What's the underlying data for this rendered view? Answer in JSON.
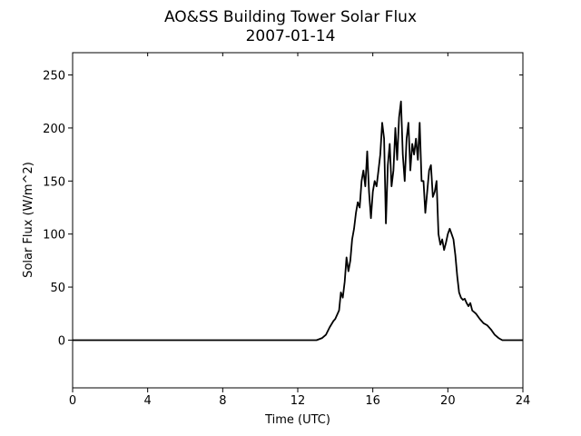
{
  "chart_data": {
    "type": "line",
    "title": "AO&SS Building Tower Solar Flux",
    "subtitle": "2007-01-14",
    "xlabel": "Time (UTC)",
    "ylabel": "Solar Flux (W/m^2)",
    "xlim": [
      0,
      24
    ],
    "ylim": [
      -45,
      271
    ],
    "xticks": [
      0,
      4,
      8,
      12,
      16,
      20,
      24
    ],
    "yticks": [
      0,
      50,
      100,
      150,
      200,
      250
    ],
    "grid": false,
    "line_color": "#000000",
    "series": [
      {
        "x": [
          0,
          12.5,
          13.0,
          13.3,
          13.5,
          13.7,
          13.9,
          14.0,
          14.2,
          14.3,
          14.4,
          14.5,
          14.6,
          14.7,
          14.8,
          14.9,
          15.0,
          15.1,
          15.2,
          15.3,
          15.4,
          15.5,
          15.6,
          15.7,
          15.8,
          15.9,
          16.0,
          16.1,
          16.2,
          16.3,
          16.4,
          16.5,
          16.6,
          16.7,
          16.8,
          16.9,
          17.0,
          17.1,
          17.2,
          17.3,
          17.4,
          17.5,
          17.6,
          17.7,
          17.8,
          17.9,
          18.0,
          18.1,
          18.2,
          18.3,
          18.4,
          18.5,
          18.6,
          18.7,
          18.8,
          18.9,
          19.0,
          19.1,
          19.2,
          19.3,
          19.4,
          19.5,
          19.6,
          19.7,
          19.8,
          19.9,
          20.0,
          20.1,
          20.2,
          20.3,
          20.4,
          20.5,
          20.6,
          20.7,
          20.8,
          20.9,
          21.0,
          21.1,
          21.2,
          21.3,
          21.5,
          21.7,
          21.9,
          22.1,
          22.3,
          22.5,
          22.7,
          22.9,
          23.1,
          23.5,
          24.0
        ],
        "y": [
          0,
          0,
          0,
          2,
          5,
          12,
          18,
          20,
          28,
          45,
          40,
          55,
          78,
          65,
          75,
          95,
          105,
          120,
          130,
          125,
          150,
          160,
          145,
          178,
          140,
          115,
          140,
          150,
          145,
          160,
          175,
          205,
          190,
          110,
          165,
          185,
          145,
          160,
          200,
          170,
          210,
          225,
          175,
          150,
          190,
          205,
          160,
          185,
          175,
          190,
          170,
          205,
          150,
          150,
          120,
          140,
          160,
          165,
          135,
          140,
          150,
          100,
          90,
          95,
          85,
          92,
          100,
          105,
          100,
          95,
          80,
          60,
          45,
          40,
          38,
          39,
          35,
          32,
          35,
          28,
          25,
          20,
          16,
          14,
          10,
          5,
          2,
          0,
          0,
          0,
          0
        ]
      }
    ]
  }
}
